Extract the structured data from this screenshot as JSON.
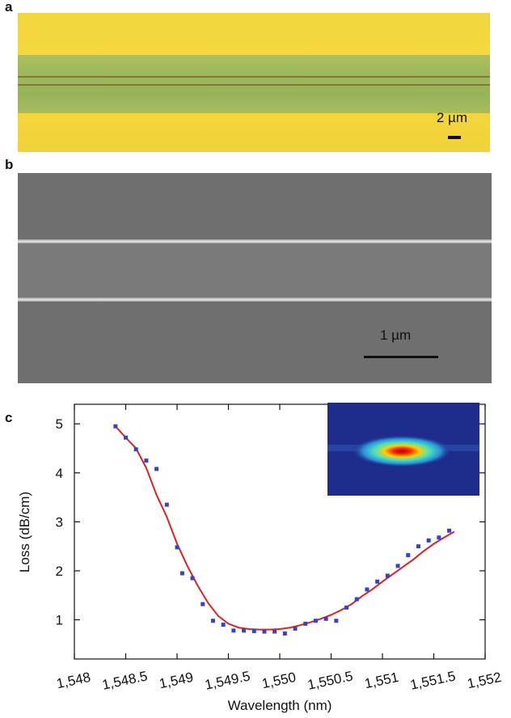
{
  "panels": {
    "a": {
      "letter": "a",
      "scale_label": "2 µm"
    },
    "b": {
      "letter": "b",
      "scale_label": "1 µm"
    },
    "c": {
      "letter": "c"
    }
  },
  "colors": {
    "line": "#dd2222",
    "points": "#3344cc",
    "axis": "#111111"
  },
  "chart_data": {
    "type": "scatter",
    "xlabel": "Wavelength (nm)",
    "ylabel": "Loss (dB/cm)",
    "xlim": [
      1548,
      1552
    ],
    "ylim": [
      0.2,
      5.4
    ],
    "x_ticks": [
      1548,
      1548.5,
      1549,
      1549.5,
      1550,
      1550.5,
      1551,
      1551.5,
      1552
    ],
    "x_tick_labels": [
      "1,548",
      "1,548.5",
      "1,549",
      "1,549.5",
      "1,550",
      "1,550.5",
      "1,551",
      "1,551.5",
      "1,552"
    ],
    "y_ticks": [
      1,
      2,
      3,
      4,
      5
    ],
    "y_tick_labels": [
      "1",
      "2",
      "3",
      "4",
      "5"
    ],
    "grid": false,
    "inset": "optical mode profile",
    "series": [
      {
        "kind": "line",
        "x": [
          1548.4,
          1548.5,
          1548.6,
          1548.7,
          1548.8,
          1548.9,
          1549.0,
          1549.1,
          1549.2,
          1549.3,
          1549.4,
          1549.5,
          1549.6,
          1549.7,
          1549.8,
          1549.9,
          1550.0,
          1550.1,
          1550.2,
          1550.3,
          1550.4,
          1550.5,
          1550.6,
          1550.7,
          1550.8,
          1550.9,
          1551.0,
          1551.1,
          1551.2,
          1551.3,
          1551.4,
          1551.5,
          1551.6,
          1551.7
        ],
        "y": [
          4.95,
          4.72,
          4.5,
          4.1,
          3.55,
          3.1,
          2.55,
          2.1,
          1.7,
          1.35,
          1.08,
          0.92,
          0.84,
          0.81,
          0.8,
          0.8,
          0.81,
          0.84,
          0.89,
          0.95,
          1.02,
          1.1,
          1.2,
          1.32,
          1.48,
          1.62,
          1.78,
          1.93,
          2.08,
          2.23,
          2.4,
          2.55,
          2.68,
          2.8
        ]
      },
      {
        "kind": "points",
        "x": [
          1548.4,
          1548.5,
          1548.6,
          1548.7,
          1548.8,
          1548.9,
          1549.0,
          1549.05,
          1549.15,
          1549.25,
          1549.35,
          1549.45,
          1549.55,
          1549.65,
          1549.75,
          1549.85,
          1549.95,
          1550.05,
          1550.15,
          1550.25,
          1550.35,
          1550.45,
          1550.55,
          1550.65,
          1550.75,
          1550.85,
          1550.95,
          1551.05,
          1551.15,
          1551.25,
          1551.35,
          1551.45,
          1551.55,
          1551.65
        ],
        "y": [
          4.95,
          4.72,
          4.48,
          4.25,
          4.08,
          3.35,
          2.48,
          1.95,
          1.85,
          1.32,
          0.98,
          0.9,
          0.78,
          0.78,
          0.77,
          0.76,
          0.76,
          0.72,
          0.82,
          0.92,
          0.98,
          1.02,
          0.98,
          1.25,
          1.42,
          1.62,
          1.78,
          1.9,
          2.1,
          2.32,
          2.5,
          2.62,
          2.68,
          2.82
        ]
      }
    ]
  }
}
